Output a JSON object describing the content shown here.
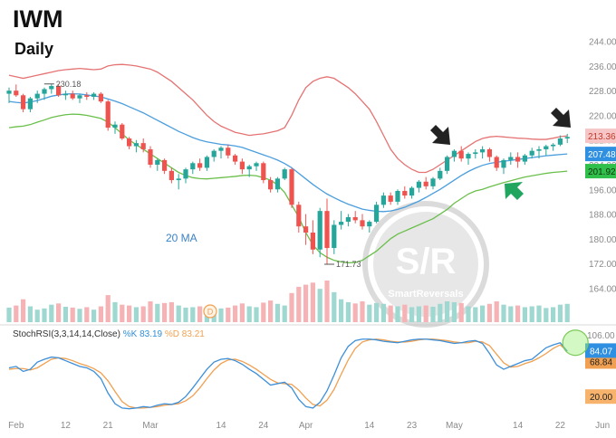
{
  "header": {
    "ticker": "IWM",
    "interval": "Daily"
  },
  "annotations": {
    "ma_label": "20 MA",
    "swing_high": "230.18",
    "swing_low": "171.73",
    "watermark_mark": "S/R",
    "watermark_brand": "SmartReversals",
    "event_marker": "D"
  },
  "stoch_panel": {
    "title": "StochRSI(3,3,14,14,Close)",
    "k_label": "%K",
    "k_value": "83.19",
    "d_label": "%D",
    "d_value": "83.21"
  },
  "colors": {
    "up": "#26a69a",
    "down": "#ef5350",
    "upper_band": "#e57373",
    "middle_ma": "#4a9ede",
    "lower_band": "#6abf4b",
    "volume_up": "#9fd8d0",
    "volume_down": "#f6b3b6",
    "stoch_k": "#3d8fd8",
    "stoch_d": "#f0a050",
    "arrow_black": "#222222",
    "arrow_green": "#21a660",
    "highlight_circle": "#9ef07a"
  },
  "chart_data": {
    "type": "candlestick",
    "price_axis": {
      "ticks": [
        164,
        172,
        180,
        188,
        196,
        204,
        212,
        220,
        228,
        236,
        244
      ],
      "range": [
        160,
        248
      ]
    },
    "price_labels": [
      {
        "value": 213.36,
        "text": "213.36",
        "kind": "upper_band"
      },
      {
        "value": 207.48,
        "text": "207.48",
        "kind": "middle_ma"
      },
      {
        "value": 201.92,
        "text": "201.92",
        "kind": "lower_band"
      }
    ],
    "x_axis_labels": [
      {
        "label": "Feb",
        "index": 1
      },
      {
        "label": "12",
        "index": 8
      },
      {
        "label": "21",
        "index": 14
      },
      {
        "label": "Mar",
        "index": 20
      },
      {
        "label": "14",
        "index": 30
      },
      {
        "label": "24",
        "index": 36
      },
      {
        "label": "Apr",
        "index": 42
      },
      {
        "label": "14",
        "index": 51
      },
      {
        "label": "23",
        "index": 57
      },
      {
        "label": "May",
        "index": 63
      },
      {
        "label": "14",
        "index": 72
      },
      {
        "label": "22",
        "index": 78
      },
      {
        "label": "Jun",
        "index": 84
      }
    ],
    "candles": [
      [
        227,
        229,
        224,
        228
      ],
      [
        228,
        230,
        226,
        226.5
      ],
      [
        226.5,
        227,
        221,
        222
      ],
      [
        222,
        226,
        221,
        225.5
      ],
      [
        225.5,
        228,
        224,
        227
      ],
      [
        227,
        229,
        225,
        228.5
      ],
      [
        228.5,
        230.18,
        227,
        229.5
      ],
      [
        229.5,
        230,
        226,
        226.5
      ],
      [
        226.5,
        228,
        225,
        227
      ],
      [
        227,
        228,
        225,
        225.5
      ],
      [
        225.5,
        227,
        224,
        226.5
      ],
      [
        226.5,
        227.5,
        225,
        226
      ],
      [
        226,
        227.5,
        225,
        227
      ],
      [
        227,
        227.5,
        224,
        224.5
      ],
      [
        224.5,
        225,
        215,
        216
      ],
      [
        216,
        218,
        214,
        217
      ],
      [
        217,
        217.5,
        212,
        212.5
      ],
      [
        212.5,
        213,
        209,
        210
      ],
      [
        210,
        212,
        208,
        211
      ],
      [
        211,
        212.5,
        208,
        209
      ],
      [
        209,
        210,
        203,
        204
      ],
      [
        204,
        206,
        202,
        205.5
      ],
      [
        205.5,
        206,
        201,
        202
      ],
      [
        202,
        203,
        198,
        199
      ],
      [
        199,
        201,
        196,
        199.5
      ],
      [
        199.5,
        203,
        198,
        202.5
      ],
      [
        202.5,
        205,
        201,
        204.5
      ],
      [
        204.5,
        206,
        202,
        203
      ],
      [
        203,
        207,
        202,
        206.5
      ],
      [
        206.5,
        209,
        205,
        208.5
      ],
      [
        208.5,
        210,
        206,
        209.5
      ],
      [
        209.5,
        210.5,
        206,
        207
      ],
      [
        207,
        207.5,
        204,
        205
      ],
      [
        205,
        206,
        201,
        202.5
      ],
      [
        202.5,
        204,
        200,
        203.5
      ],
      [
        203.5,
        205,
        202,
        204.5
      ],
      [
        204.5,
        205,
        198,
        199
      ],
      [
        199,
        200,
        195,
        196
      ],
      [
        196,
        200,
        195,
        199.5
      ],
      [
        199.5,
        203,
        199,
        202.5
      ],
      [
        202.5,
        203,
        190,
        191
      ],
      [
        191,
        192,
        182,
        184
      ],
      [
        184,
        188,
        178,
        182
      ],
      [
        182,
        186,
        175,
        176.5
      ],
      [
        176.5,
        190,
        174,
        189
      ],
      [
        189,
        193,
        171.73,
        177
      ],
      [
        177,
        186,
        175,
        184.5
      ],
      [
        184.5,
        189,
        183,
        185.5
      ],
      [
        185.5,
        188,
        184,
        187
      ],
      [
        187,
        189,
        185,
        186
      ],
      [
        186,
        188,
        183,
        184
      ],
      [
        184,
        186,
        182,
        185.5
      ],
      [
        185.5,
        192,
        185,
        191
      ],
      [
        191,
        195,
        190,
        194
      ],
      [
        194,
        195,
        191,
        192
      ],
      [
        192,
        196,
        191,
        195.5
      ],
      [
        195.5,
        197,
        193,
        194
      ],
      [
        194,
        197,
        193,
        196.5
      ],
      [
        196.5,
        199,
        195,
        198.5
      ],
      [
        198.5,
        200,
        196,
        197
      ],
      [
        197,
        200,
        196,
        199.5
      ],
      [
        199.5,
        203,
        199,
        202
      ],
      [
        202,
        207,
        201,
        206.5
      ],
      [
        206.5,
        209,
        205,
        208.5
      ],
      [
        208.5,
        210,
        205,
        206
      ],
      [
        206,
        208,
        204,
        207.5
      ],
      [
        207.5,
        209,
        206,
        208
      ],
      [
        208,
        210,
        206,
        209
      ],
      [
        209,
        209.5,
        205,
        206.5
      ],
      [
        206.5,
        207,
        202,
        203
      ],
      [
        203,
        206,
        201,
        205.5
      ],
      [
        205.5,
        208,
        204,
        206.5
      ],
      [
        206.5,
        208,
        203,
        205
      ],
      [
        205,
        207.5,
        204,
        207
      ],
      [
        207,
        209.5,
        206,
        208.5
      ],
      [
        208.5,
        210,
        206,
        209
      ],
      [
        209,
        210.5,
        207,
        210
      ],
      [
        210,
        211,
        208.5,
        210.5
      ],
      [
        210.5,
        213.5,
        210,
        212.5
      ],
      [
        212.5,
        214,
        211,
        213
      ]
    ],
    "volume": [
      35,
      40,
      55,
      38,
      30,
      33,
      42,
      45,
      37,
      35,
      32,
      36,
      30,
      38,
      65,
      48,
      42,
      40,
      36,
      38,
      50,
      44,
      46,
      48,
      40,
      35,
      36,
      38,
      34,
      30,
      33,
      35,
      40,
      45,
      38,
      36,
      47,
      52,
      44,
      40,
      70,
      85,
      90,
      95,
      80,
      100,
      72,
      55,
      48,
      45,
      50,
      42,
      46,
      44,
      40,
      38,
      42,
      36,
      38,
      40,
      37,
      44,
      50,
      48,
      46,
      38,
      36,
      40,
      44,
      50,
      42,
      38,
      40,
      36,
      38,
      40,
      34,
      36,
      42,
      44
    ],
    "bollinger": {
      "upper": [
        233,
        232.5,
        232,
        232.5,
        233,
        233.5,
        234,
        234.5,
        234.8,
        235,
        235.2,
        235,
        234.8,
        235,
        236,
        236.4,
        236.5,
        236.3,
        236,
        235.5,
        235,
        234,
        232.5,
        231,
        229,
        227,
        225,
        222.5,
        220,
        218,
        216.5,
        215.5,
        214.5,
        214,
        213.5,
        213.8,
        214,
        214.5,
        215,
        216,
        220,
        225,
        229,
        231,
        232,
        232.5,
        232,
        230.5,
        229,
        227,
        224.5,
        222,
        218,
        213.5,
        209,
        206,
        204,
        202.5,
        201.5,
        201.5,
        202.5,
        204,
        205.5,
        207,
        208.5,
        210,
        211.5,
        212.5,
        213,
        213.2,
        213,
        212.8,
        212.6,
        212.5,
        212.3,
        212.2,
        212.2,
        212.6,
        213.1,
        213.36
      ],
      "middle": [
        224.5,
        224.2,
        224,
        224.3,
        224.8,
        225.5,
        226.2,
        226.6,
        226.9,
        227,
        226.9,
        226.6,
        226.3,
        226,
        225.3,
        224.6,
        223.8,
        222.8,
        221.8,
        220.8,
        219.6,
        218.4,
        217.2,
        216,
        214.8,
        213.8,
        212.8,
        212,
        211.4,
        211,
        210.6,
        210.4,
        210.1,
        209.6,
        208.8,
        208,
        207.2,
        206.4,
        205.5,
        204.4,
        203,
        201.2,
        199.4,
        197.6,
        196,
        194.5,
        193.3,
        192.2,
        191.2,
        190.4,
        189.6,
        189.2,
        188.9,
        188.8,
        189,
        189.5,
        190.2,
        191.2,
        192.2,
        193.4,
        194.7,
        196,
        197.5,
        199,
        200.5,
        201.8,
        202.9,
        203.8,
        204.4,
        204.8,
        205.1,
        205.4,
        205.7,
        206,
        206.3,
        206.6,
        206.9,
        207.1,
        207.3,
        207.48
      ],
      "lower": [
        216,
        216.3,
        216.5,
        217,
        217.8,
        218.5,
        219.3,
        219.8,
        220.2,
        220.4,
        220.3,
        220,
        219.5,
        219,
        217.8,
        216,
        214,
        212,
        210.5,
        209,
        207.5,
        206,
        204.5,
        203,
        201.5,
        200.5,
        199.8,
        199.5,
        199.4,
        199.6,
        199.8,
        200,
        200.2,
        200.5,
        200.6,
        200.4,
        199.8,
        199,
        197.5,
        195,
        191,
        187,
        182,
        178,
        175.5,
        174,
        173,
        172.5,
        172.2,
        172.3,
        173,
        174.5,
        176,
        178,
        180,
        181.5,
        182.5,
        183.5,
        184.5,
        185.5,
        186.5,
        188,
        189.5,
        191.5,
        193,
        194.5,
        195.5,
        196,
        196.8,
        197.5,
        198.2,
        198.8,
        199.4,
        200,
        200.4,
        200.8,
        201.2,
        201.5,
        201.7,
        201.92
      ]
    },
    "stoch_rsi": {
      "ticks": [
        20.0,
        68.84,
        84.07,
        106.0
      ],
      "tick_labels": [
        "20.00",
        "68.84",
        "84.07",
        "106.00"
      ],
      "range": [
        -10,
        106
      ],
      "k": [
        60,
        62,
        55,
        58,
        68,
        72,
        75,
        74,
        70,
        66,
        62,
        60,
        55,
        45,
        25,
        10,
        4,
        3,
        4,
        6,
        5,
        8,
        10,
        9,
        12,
        20,
        32,
        45,
        58,
        68,
        72,
        73,
        70,
        65,
        58,
        52,
        44,
        36,
        38,
        40,
        32,
        16,
        6,
        4,
        12,
        28,
        50,
        74,
        90,
        98,
        100,
        100,
        99,
        97,
        96,
        95,
        97,
        99,
        100,
        100,
        99,
        98,
        96,
        94,
        95,
        97,
        98,
        94,
        80,
        64,
        58,
        62,
        66,
        70,
        72,
        80,
        88,
        92,
        95,
        83.19
      ],
      "d": [
        58,
        59,
        59,
        57,
        60,
        66,
        72,
        74,
        73,
        70,
        66,
        63,
        59,
        53,
        42,
        27,
        13,
        6,
        4,
        4,
        5,
        6,
        8,
        9,
        10,
        14,
        21,
        32,
        45,
        57,
        66,
        71,
        72,
        69,
        64,
        58,
        51,
        44,
        39,
        38,
        37,
        29,
        18,
        9,
        7,
        15,
        30,
        51,
        71,
        87,
        96,
        99,
        100,
        99,
        97,
        96,
        96,
        97,
        99,
        100,
        100,
        99,
        98,
        96,
        95,
        95,
        97,
        96,
        91,
        79,
        67,
        61,
        62,
        66,
        69,
        74,
        80,
        87,
        92,
        83.21
      ]
    }
  }
}
